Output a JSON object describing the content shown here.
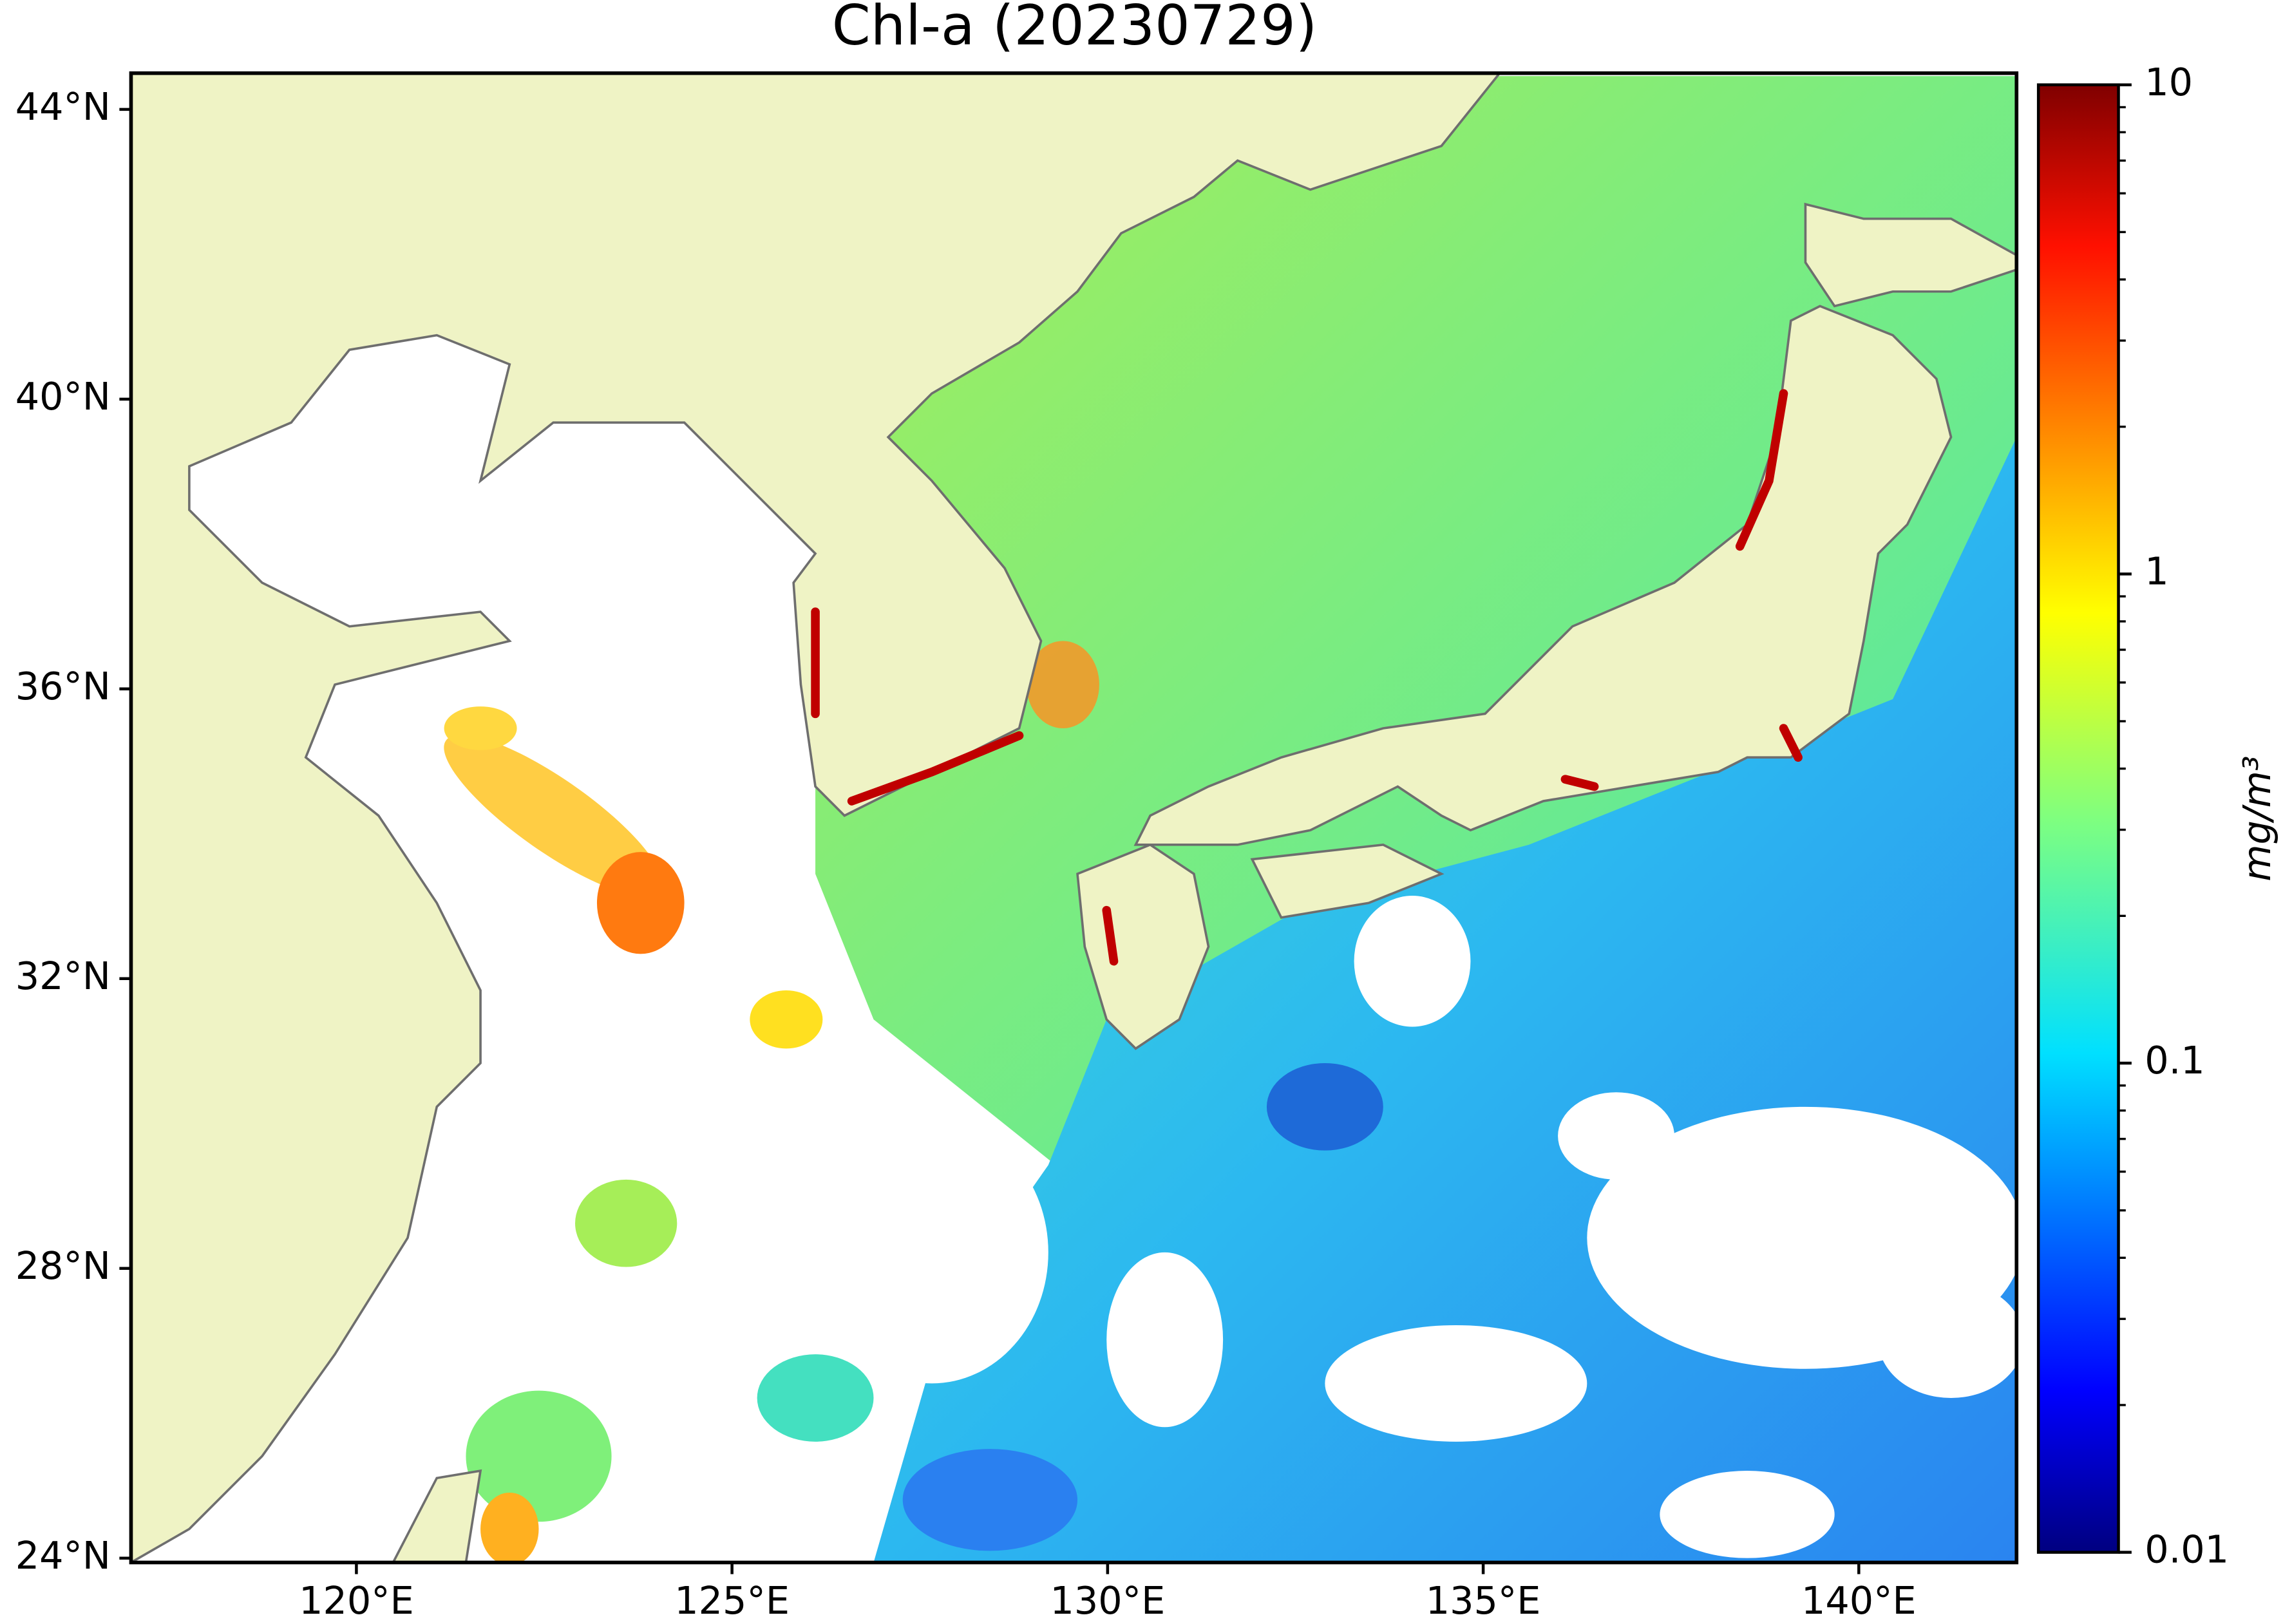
{
  "chart_data": {
    "type": "map",
    "title": "Chl-a (20230729)",
    "xlim": [
      117,
      142.1
    ],
    "ylim": [
      23.94,
      44.5
    ],
    "xticks": [
      {
        "value": 120,
        "label": "120°E"
      },
      {
        "value": 125,
        "label": "125°E"
      },
      {
        "value": 130,
        "label": "130°E"
      },
      {
        "value": 135,
        "label": "135°E"
      },
      {
        "value": 140,
        "label": "140°E"
      }
    ],
    "yticks": [
      {
        "value": 24,
        "label": "24°N"
      },
      {
        "value": 28,
        "label": "28°N"
      },
      {
        "value": 32,
        "label": "32°N"
      },
      {
        "value": 36,
        "label": "36°N"
      },
      {
        "value": 40,
        "label": "40°N"
      },
      {
        "value": 44,
        "label": "44°N"
      }
    ],
    "colorbar": {
      "label": "mg/m³",
      "scale": "log",
      "lim": [
        0.01,
        10
      ],
      "ticks": [
        0.01,
        0.1,
        1,
        10
      ]
    }
  }
}
